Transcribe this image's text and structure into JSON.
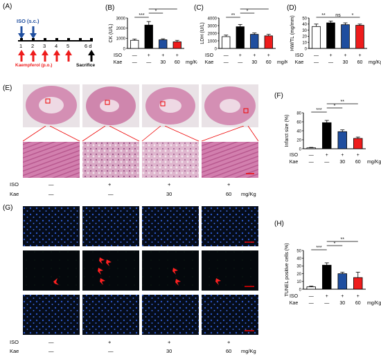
{
  "panels": {
    "A": "(A)",
    "B": "(B)",
    "C": "(C)",
    "D": "(D)",
    "E": "(E)",
    "F": "(F)",
    "G": "(G)",
    "H": "(H)"
  },
  "protocol": {
    "iso_label": "ISO (s.c.)",
    "kae_label": "Kaempferol (p.o.)",
    "days": [
      "1",
      "2",
      "3",
      "4",
      "5",
      "6 d"
    ],
    "sacrifice": "Sacrifice"
  },
  "group_rows": {
    "iso_label": "ISO",
    "kae_label": "Kae",
    "iso": [
      "—",
      "+",
      "+",
      "+"
    ],
    "kae": [
      "—",
      "—",
      "30",
      "60"
    ],
    "unit": "mg/Kg"
  },
  "chart_data": [
    {
      "panel": "B",
      "type": "bar",
      "ylabel": "CK (U/L)",
      "ylim": [
        0,
        3000
      ],
      "yticks": [
        "0",
        "1000",
        "2000",
        "3000"
      ],
      "values": [
        800,
        2300,
        850,
        650
      ],
      "errors": [
        120,
        350,
        100,
        150
      ],
      "colors": [
        "#ffffff",
        "#000000",
        "#1f4e9f",
        "#ee1c1c"
      ],
      "significance": [
        {
          "from": 0,
          "to": 1,
          "label": "***",
          "level": 0
        },
        {
          "from": 1,
          "to": 2,
          "label": "*",
          "level": 1
        },
        {
          "from": 1,
          "to": 3,
          "label": "**",
          "level": 2
        }
      ]
    },
    {
      "panel": "C",
      "type": "bar",
      "ylabel": "LDH (U/L)",
      "ylim": [
        0,
        4000
      ],
      "yticks": [
        "0",
        "1000",
        "2000",
        "3000",
        "4000"
      ],
      "values": [
        1550,
        2850,
        1850,
        1650
      ],
      "errors": [
        200,
        300,
        180,
        200
      ],
      "colors": [
        "#ffffff",
        "#000000",
        "#1f4e9f",
        "#ee1c1c"
      ],
      "significance": [
        {
          "from": 0,
          "to": 1,
          "label": "**",
          "level": 0
        },
        {
          "from": 1,
          "to": 2,
          "label": "*",
          "level": 1
        },
        {
          "from": 1,
          "to": 3,
          "label": "**",
          "level": 2
        }
      ]
    },
    {
      "panel": "D",
      "type": "bar",
      "ylabel": "HW/TL (mg/mm)",
      "ylim": [
        0,
        50
      ],
      "yticks": [
        "0",
        "10",
        "20",
        "30",
        "40",
        "50"
      ],
      "values": [
        36,
        42,
        39,
        38
      ],
      "errors": [
        4,
        3,
        3,
        2
      ],
      "colors": [
        "#ffffff",
        "#000000",
        "#1f4e9f",
        "#ee1c1c"
      ],
      "significance": [
        {
          "from": 0,
          "to": 1,
          "label": "**",
          "level": 0
        },
        {
          "from": 1,
          "to": 2,
          "label": "ns",
          "level": 0
        },
        {
          "from": 2,
          "to": 3,
          "label": "*",
          "level": 0
        }
      ]
    },
    {
      "panel": "F",
      "type": "bar",
      "ylabel": "Infarct size (%)",
      "ylim": [
        0,
        80
      ],
      "yticks": [
        "0",
        "20",
        "40",
        "60",
        "80"
      ],
      "values": [
        2,
        58,
        38,
        23
      ],
      "errors": [
        1,
        5,
        4,
        3
      ],
      "colors": [
        "#ffffff",
        "#000000",
        "#1f4e9f",
        "#ee1c1c"
      ],
      "significance": [
        {
          "from": 0,
          "to": 1,
          "label": "***",
          "level": 0
        },
        {
          "from": 1,
          "to": 2,
          "label": "*",
          "level": 1
        },
        {
          "from": 1,
          "to": 3,
          "label": "**",
          "level": 2
        }
      ]
    },
    {
      "panel": "H",
      "type": "bar",
      "ylabel": "TUNEL positive cells (%)",
      "ylim": [
        0,
        50
      ],
      "yticks": [
        "0",
        "10",
        "20",
        "30",
        "40",
        "50"
      ],
      "values": [
        3,
        31,
        20,
        15
      ],
      "errors": [
        1,
        3,
        2,
        7
      ],
      "colors": [
        "#ffffff",
        "#000000",
        "#1f4e9f",
        "#ee1c1c"
      ],
      "significance": [
        {
          "from": 0,
          "to": 1,
          "label": "***",
          "level": 0
        },
        {
          "from": 1,
          "to": 2,
          "label": "*",
          "level": 1
        },
        {
          "from": 1,
          "to": 3,
          "label": "**",
          "level": 2
        }
      ]
    }
  ]
}
